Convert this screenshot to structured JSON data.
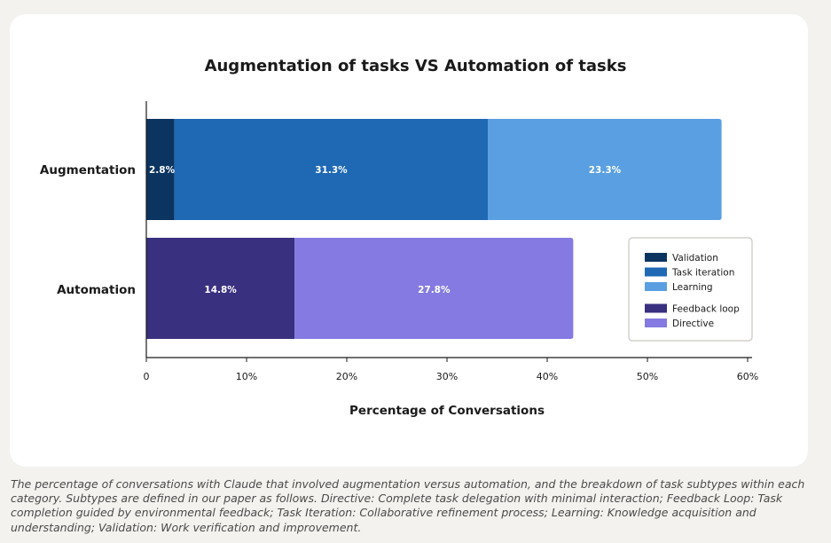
{
  "chart_data": {
    "type": "bar",
    "orientation": "horizontal",
    "stacked": true,
    "title": "Augmentation of tasks VS Automation of tasks",
    "xlabel": "Percentage of Conversations",
    "ylabel": "",
    "xlim": [
      0,
      60
    ],
    "xticks": [
      0,
      10,
      20,
      30,
      40,
      50,
      60
    ],
    "xtick_labels": [
      "0",
      "10%",
      "20%",
      "30%",
      "40%",
      "50%",
      "60%"
    ],
    "categories": [
      "Augmentation",
      "Automation"
    ],
    "grid": false,
    "legend_position": "right",
    "series": [
      {
        "name": "Validation",
        "color": "#0b3560",
        "values": [
          2.8,
          null
        ],
        "labels": [
          "2.8%",
          null
        ]
      },
      {
        "name": "Task iteration",
        "color": "#1e68b4",
        "values": [
          31.3,
          null
        ],
        "labels": [
          "31.3%",
          null
        ]
      },
      {
        "name": "Learning",
        "color": "#599fe1",
        "values": [
          23.3,
          null
        ],
        "labels": [
          "23.3%",
          null
        ]
      },
      {
        "name": "Feedback loop",
        "color": "#393080",
        "values": [
          null,
          14.8
        ],
        "labels": [
          null,
          "14.8%"
        ]
      },
      {
        "name": "Directive",
        "color": "#847ae1",
        "values": [
          null,
          27.8
        ],
        "labels": [
          null,
          "27.8%"
        ]
      }
    ],
    "legend_groups": [
      [
        "Validation",
        "Task iteration",
        "Learning"
      ],
      [
        "Feedback loop",
        "Directive"
      ]
    ]
  },
  "caption": "The percentage of conversations with Claude that involved augmentation versus automation, and the breakdown of task subtypes within each category. Subtypes are defined in our paper as follows. Directive: Complete task delegation with minimal interaction; Feedback Loop: Task completion guided by environmental feedback; Task Iteration: Collaborative refinement process; Learning: Knowledge acquisition and understanding; Validation: Work verification and improvement."
}
